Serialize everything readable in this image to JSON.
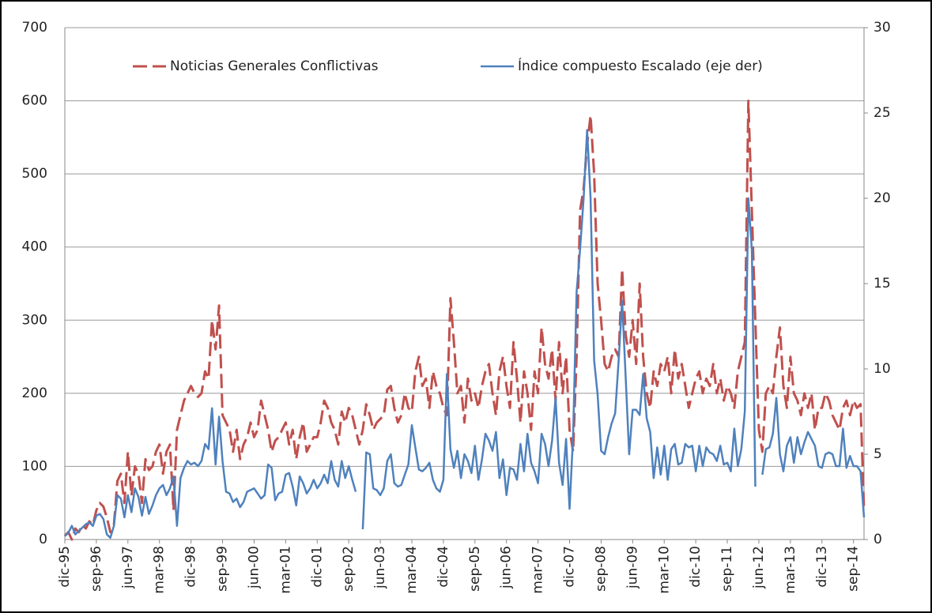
{
  "chart_data": {
    "type": "line",
    "categories": [
      "dic-95",
      null,
      null,
      null,
      null,
      null,
      null,
      null,
      null,
      "sep-96",
      null,
      null,
      null,
      null,
      null,
      null,
      null,
      null,
      "jun-97",
      null,
      null,
      null,
      null,
      null,
      null,
      null,
      null,
      "mar-98",
      null,
      null,
      null,
      null,
      null,
      null,
      null,
      null,
      "dic-98",
      null,
      null,
      null,
      null,
      null,
      null,
      null,
      null,
      "sep-99",
      null,
      null,
      null,
      null,
      null,
      null,
      null,
      null,
      "jun-00",
      null,
      null,
      null,
      null,
      null,
      null,
      null,
      null,
      "mar-01",
      null,
      null,
      null,
      null,
      null,
      null,
      null,
      null,
      "dic-01",
      null,
      null,
      null,
      null,
      null,
      null,
      null,
      null,
      "sep-02",
      null,
      null,
      null,
      null,
      null,
      null,
      null,
      null,
      "jun-03",
      null,
      null,
      null,
      null,
      null,
      null,
      null,
      null,
      "mar-04",
      null,
      null,
      null,
      null,
      null,
      null,
      null,
      null,
      "dic-04",
      null,
      null,
      null,
      null,
      null,
      null,
      null,
      null,
      "sep-05",
      null,
      null,
      null,
      null,
      null,
      null,
      null,
      null,
      "jun-06",
      null,
      null,
      null,
      null,
      null,
      null,
      null,
      null,
      "mar-07",
      null,
      null,
      null,
      null,
      null,
      null,
      null,
      null,
      "dic-07",
      null,
      null,
      null,
      null,
      null,
      null,
      null,
      null,
      "sep-08",
      null,
      null,
      null,
      null,
      null,
      null,
      null,
      null,
      "jun-09",
      null,
      null,
      null,
      null,
      null,
      null,
      null,
      null,
      "mar-10",
      null,
      null,
      null,
      null,
      null,
      null,
      null,
      null,
      "dic-10",
      null,
      null,
      null,
      null,
      null,
      null,
      null,
      null,
      "sep-11",
      null,
      null,
      null,
      null,
      null,
      null,
      null,
      null,
      "jun-12",
      null,
      null,
      null,
      null,
      null,
      null,
      null,
      null,
      "mar-13",
      null,
      null,
      null,
      null,
      null,
      null,
      null,
      null,
      "dic-13",
      null,
      null,
      null,
      null,
      null,
      null,
      null,
      null,
      "sep-14",
      null,
      null,
      null
    ],
    "series": [
      {
        "name": "Noticias Generales Conflictivas",
        "color": "#c0504d",
        "dashed": true,
        "values": [
          5,
          10,
          0,
          15,
          10,
          20,
          15,
          25,
          20,
          40,
          50,
          45,
          30,
          10,
          20,
          80,
          90,
          50,
          120,
          60,
          100,
          90,
          50,
          110,
          95,
          100,
          120,
          130,
          90,
          120,
          130,
          40,
          150,
          170,
          190,
          200,
          210,
          200,
          195,
          200,
          230,
          220,
          300,
          260,
          320,
          170,
          160,
          150,
          120,
          150,
          110,
          130,
          140,
          160,
          140,
          150,
          190,
          170,
          150,
          120,
          135,
          140,
          150,
          160,
          130,
          150,
          110,
          140,
          160,
          120,
          130,
          140,
          140,
          160,
          190,
          180,
          160,
          150,
          130,
          175,
          160,
          180,
          170,
          150,
          130,
          150,
          185,
          170,
          150,
          160,
          165,
          170,
          205,
          210,
          180,
          160,
          170,
          200,
          180,
          175,
          230,
          250,
          210,
          220,
          180,
          230,
          210,
          200,
          180,
          170,
          330,
          270,
          200,
          210,
          160,
          220,
          190,
          200,
          180,
          210,
          230,
          240,
          200,
          170,
          230,
          250,
          210,
          180,
          270,
          220,
          160,
          230,
          200,
          150,
          230,
          200,
          290,
          240,
          220,
          260,
          190,
          270,
          200,
          250,
          150,
          120,
          250,
          450,
          480,
          540,
          580,
          500,
          350,
          300,
          240,
          230,
          250,
          260,
          250,
          370,
          280,
          250,
          300,
          240,
          350,
          250,
          200,
          180,
          230,
          210,
          240,
          230,
          250,
          200,
          260,
          220,
          240,
          210,
          180,
          200,
          220,
          230,
          200,
          220,
          210,
          240,
          200,
          220,
          190,
          210,
          200,
          180,
          230,
          250,
          270,
          600,
          450,
          300,
          150,
          120,
          200,
          210,
          200,
          250,
          290,
          210,
          180,
          250,
          200,
          190,
          170,
          200,
          180,
          200,
          150,
          180,
          180,
          200,
          190,
          170,
          160,
          150,
          180,
          190,
          170,
          190,
          180,
          185,
          40
        ]
      },
      {
        "name": "Índice compuesto Escalado (eje der)",
        "color": "#4f81bd",
        "axis": "y2",
        "values": [
          0.2,
          0.4,
          0.8,
          0.3,
          0.5,
          0.7,
          0.9,
          1.0,
          0.8,
          1.4,
          1.5,
          1.2,
          0.3,
          0.1,
          0.8,
          2.6,
          2.4,
          1.3,
          2.6,
          1.6,
          3.0,
          2.5,
          1.4,
          2.5,
          1.5,
          2.0,
          2.6,
          3.0,
          3.2,
          2.6,
          3.0,
          3.7,
          0.8,
          3.6,
          4.2,
          4.6,
          4.4,
          4.5,
          4.3,
          4.6,
          5.6,
          5.3,
          7.7,
          4.4,
          7.2,
          4.6,
          2.8,
          2.7,
          2.2,
          2.4,
          1.9,
          2.2,
          2.8,
          2.9,
          3.0,
          2.7,
          2.4,
          2.6,
          4.4,
          4.2,
          2.3,
          2.7,
          2.8,
          3.8,
          3.9,
          3.1,
          2.0,
          3.7,
          3.3,
          2.7,
          3.0,
          3.5,
          3.0,
          3.3,
          3.8,
          3.3,
          4.6,
          3.5,
          3.1,
          4.6,
          3.6,
          4.3,
          3.5,
          2.8,
          null,
          0.6,
          5.1,
          5.0,
          3.0,
          2.9,
          2.6,
          3.0,
          4.6,
          5.0,
          3.3,
          3.1,
          3.2,
          3.8,
          4.4,
          6.7,
          5.4,
          4.1,
          4.0,
          4.2,
          4.5,
          3.5,
          3.0,
          2.8,
          3.5,
          9.7,
          5.3,
          4.2,
          5.2,
          3.6,
          5.0,
          4.6,
          3.9,
          5.5,
          3.5,
          4.7,
          6.2,
          5.8,
          5.2,
          6.3,
          3.6,
          4.7,
          2.6,
          4.2,
          4.1,
          3.5,
          5.6,
          4.0,
          6.2,
          4.5,
          4.0,
          3.3,
          6.2,
          5.6,
          4.3,
          5.8,
          8.3,
          4.5,
          3.2,
          5.9,
          1.8,
          6.1,
          14.5,
          17.0,
          20.0,
          24.0,
          20.0,
          10.5,
          8.5,
          5.2,
          5.0,
          6.0,
          6.8,
          7.4,
          10.5,
          14.0,
          9.5,
          5.0,
          7.6,
          7.6,
          7.3,
          9.7,
          7.1,
          6.3,
          3.6,
          5.4,
          3.8,
          5.5,
          3.5,
          5.3,
          5.6,
          4.4,
          4.5,
          5.6,
          5.4,
          5.5,
          4.0,
          5.5,
          4.3,
          5.4,
          5.1,
          5.0,
          4.6,
          5.5,
          4.4,
          4.5,
          4.0,
          6.5,
          4.3,
          5.3,
          7.5,
          20.0,
          17.0,
          3.1,
          null,
          3.8,
          5.3,
          5.4,
          6.2,
          8.3,
          5.0,
          4.0,
          5.5,
          6.0,
          4.5,
          6.0,
          5.0,
          5.7,
          6.3,
          5.9,
          5.5,
          4.3,
          4.2,
          5.0,
          5.1,
          5.0,
          4.3,
          4.3,
          6.5,
          4.2,
          4.9,
          4.3,
          4.3,
          4.0,
          1.3
        ]
      }
    ],
    "ylim": [
      0,
      700
    ],
    "yticks": [
      0,
      100,
      200,
      300,
      400,
      500,
      600,
      700
    ],
    "y2lim": [
      0,
      30
    ],
    "y2ticks": [
      0,
      5,
      10,
      15,
      20,
      25,
      30
    ],
    "grid": true,
    "legend": "top"
  }
}
